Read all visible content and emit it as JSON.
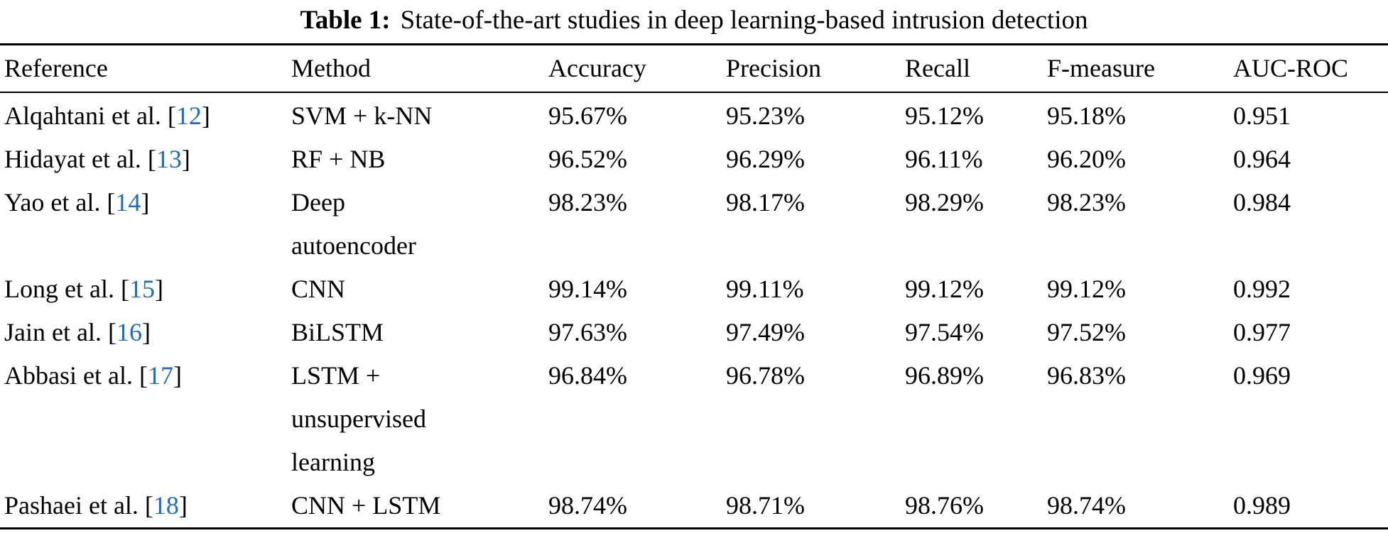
{
  "caption": {
    "label": "Table 1:",
    "text": "State-of-the-art studies in deep learning-based intrusion detection"
  },
  "punct": {
    "cite_open": "[",
    "cite_close": "]"
  },
  "colors": {
    "citation": "#1a6fc4",
    "text": "#000000",
    "rule": "#000000",
    "background": "#ffffff"
  },
  "table": {
    "columns": [
      "Reference",
      "Method",
      "Accuracy",
      "Precision",
      "Recall",
      "F-measure",
      "AUC-ROC"
    ],
    "rows": [
      {
        "ref": "Alqahtani et al.",
        "cite": "12",
        "method_lines": [
          "SVM + k-NN"
        ],
        "values": [
          "95.67%",
          "95.23%",
          "95.12%",
          "95.18%",
          "0.951"
        ]
      },
      {
        "ref": "Hidayat et al.",
        "cite": "13",
        "method_lines": [
          "RF + NB"
        ],
        "values": [
          "96.52%",
          "96.29%",
          "96.11%",
          "96.20%",
          "0.964"
        ]
      },
      {
        "ref": "Yao et al.",
        "cite": "14",
        "method_lines": [
          "Deep",
          "autoencoder"
        ],
        "values": [
          "98.23%",
          "98.17%",
          "98.29%",
          "98.23%",
          "0.984"
        ]
      },
      {
        "ref": "Long et al.",
        "cite": "15",
        "method_lines": [
          "CNN"
        ],
        "values": [
          "99.14%",
          "99.11%",
          "99.12%",
          "99.12%",
          "0.992"
        ]
      },
      {
        "ref": "Jain et al.",
        "cite": "16",
        "method_lines": [
          "BiLSTM"
        ],
        "values": [
          "97.63%",
          "97.49%",
          "97.54%",
          "97.52%",
          "0.977"
        ]
      },
      {
        "ref": "Abbasi et al.",
        "cite": "17",
        "method_lines": [
          "LSTM +",
          "unsupervised",
          "learning"
        ],
        "values": [
          "96.84%",
          "96.78%",
          "96.89%",
          "96.83%",
          "0.969"
        ]
      },
      {
        "ref": "Pashaei et al.",
        "cite": "18",
        "method_lines": [
          "CNN + LSTM"
        ],
        "values": [
          "98.74%",
          "98.71%",
          "98.76%",
          "98.74%",
          "0.989"
        ]
      }
    ]
  }
}
